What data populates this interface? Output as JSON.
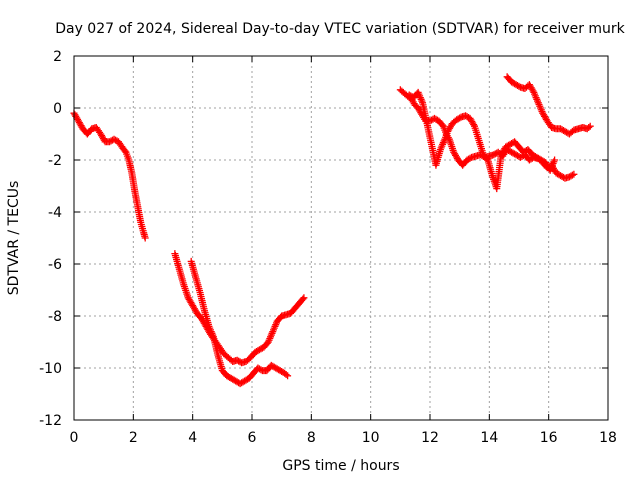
{
  "chart_data": {
    "type": "scatter",
    "title": "Day 027 of 2024, Sidereal Day-to-day VTEC variation (SDTVAR) for receiver murk",
    "xlabel": "GPS time / hours",
    "ylabel": "SDTVAR / TECUs",
    "xlim": [
      0,
      18
    ],
    "ylim": [
      -12,
      2
    ],
    "xticks": [
      0,
      2,
      4,
      6,
      8,
      10,
      12,
      14,
      16,
      18
    ],
    "yticks": [
      2,
      0,
      -2,
      -4,
      -6,
      -8,
      -10,
      -12
    ],
    "xtick_labels": [
      "0",
      "2",
      "4",
      "6",
      "8",
      "10",
      "12",
      "14",
      "16",
      "18"
    ],
    "ytick_labels": [
      "2",
      "0",
      "-2",
      "-4",
      "-6",
      "-8",
      "-10",
      "-12"
    ],
    "grid": true,
    "marker": "+",
    "color": "#ff0000",
    "series": [
      {
        "name": "segment-1",
        "x": [
          0.0,
          0.15,
          0.3,
          0.45,
          0.6,
          0.75,
          0.9,
          1.05,
          1.2,
          1.35,
          1.5,
          1.65,
          1.75,
          1.85,
          1.95,
          2.05,
          2.15,
          2.25,
          2.35,
          2.4
        ],
        "y": [
          -0.2,
          -0.5,
          -0.8,
          -1.0,
          -0.8,
          -0.75,
          -1.0,
          -1.3,
          -1.3,
          -1.2,
          -1.3,
          -1.55,
          -1.7,
          -2.0,
          -2.5,
          -3.2,
          -3.8,
          -4.4,
          -4.8,
          -5.0
        ]
      },
      {
        "name": "segment-2",
        "x": [
          3.4,
          3.55,
          3.7,
          3.85,
          4.0,
          4.15,
          4.3,
          4.45,
          4.6,
          4.75,
          4.9,
          5.05,
          5.2,
          5.35,
          5.5,
          5.65,
          5.8,
          5.95,
          6.1,
          6.25,
          6.4,
          6.55,
          6.7,
          6.85,
          7.0,
          7.15,
          7.3,
          7.45,
          7.6,
          7.75
        ],
        "y": [
          -5.6,
          -6.2,
          -6.8,
          -7.3,
          -7.6,
          -7.9,
          -8.1,
          -8.4,
          -8.7,
          -8.95,
          -9.2,
          -9.45,
          -9.6,
          -9.75,
          -9.7,
          -9.8,
          -9.75,
          -9.6,
          -9.4,
          -9.3,
          -9.2,
          -9.0,
          -8.6,
          -8.2,
          -8.0,
          -7.95,
          -7.9,
          -7.7,
          -7.5,
          -7.3
        ]
      },
      {
        "name": "segment-3",
        "x": [
          3.95,
          4.1,
          4.25,
          4.4,
          4.55,
          4.7,
          4.85,
          5.0,
          5.15,
          5.3,
          5.45,
          5.6,
          5.75,
          5.9,
          6.05,
          6.2,
          6.35,
          6.5,
          6.65,
          6.8,
          6.95,
          7.1,
          7.2
        ],
        "y": [
          -5.9,
          -6.5,
          -7.1,
          -7.8,
          -8.4,
          -8.8,
          -9.5,
          -10.1,
          -10.3,
          -10.4,
          -10.5,
          -10.6,
          -10.5,
          -10.4,
          -10.2,
          -10.0,
          -10.1,
          -10.1,
          -9.9,
          -10.0,
          -10.1,
          -10.2,
          -10.3
        ]
      },
      {
        "name": "segment-4",
        "x": [
          11.0,
          11.2,
          11.4,
          11.5,
          11.6,
          11.75,
          11.85,
          12.0,
          12.15,
          12.3,
          12.45,
          12.55,
          12.65,
          12.8,
          12.95,
          13.1,
          13.25,
          13.4,
          13.55,
          13.7,
          13.85,
          14.0,
          14.15,
          14.3,
          14.45,
          14.6,
          14.75,
          14.9,
          15.05,
          15.2,
          15.35,
          15.5,
          15.65,
          15.8,
          15.95,
          16.1,
          16.25,
          16.4,
          16.55,
          16.7,
          16.85
        ],
        "y": [
          0.7,
          0.5,
          0.3,
          0.1,
          0.0,
          -0.3,
          -0.5,
          -0.5,
          -0.4,
          -0.5,
          -0.7,
          -1.0,
          -1.2,
          -1.7,
          -2.0,
          -2.2,
          -2.0,
          -1.9,
          -1.85,
          -1.8,
          -1.9,
          -1.85,
          -1.8,
          -1.7,
          -1.85,
          -1.6,
          -1.7,
          -1.8,
          -1.9,
          -1.8,
          -2.0,
          -1.9,
          -1.95,
          -2.1,
          -2.3,
          -2.2,
          -2.5,
          -2.6,
          -2.7,
          -2.65,
          -2.55
        ]
      },
      {
        "name": "segment-5",
        "x": [
          11.3,
          11.45,
          11.6,
          11.75,
          12.2,
          12.35,
          12.5,
          12.6,
          12.75,
          12.9,
          13.05,
          13.2,
          13.35,
          13.5,
          13.8,
          13.95,
          14.1,
          14.25,
          14.4,
          14.55,
          14.7,
          14.85,
          15.0,
          15.15,
          15.3,
          15.45,
          15.6,
          15.75,
          15.9,
          16.05,
          16.2
        ],
        "y": [
          0.5,
          0.4,
          0.6,
          0.2,
          -2.2,
          -1.6,
          -1.2,
          -0.9,
          -0.6,
          -0.45,
          -0.35,
          -0.3,
          -0.4,
          -0.7,
          -1.8,
          -2.0,
          -2.6,
          -3.1,
          -1.8,
          -1.5,
          -1.4,
          -1.3,
          -1.5,
          -1.7,
          -1.6,
          -1.8,
          -1.9,
          -2.0,
          -2.1,
          -2.4,
          -2.0
        ]
      },
      {
        "name": "segment-6",
        "x": [
          14.6,
          14.75,
          14.9,
          15.05,
          15.2,
          15.35,
          15.5,
          15.65,
          15.8,
          15.95,
          16.1,
          16.25,
          16.4,
          16.55,
          16.7,
          16.85,
          17.0,
          17.15,
          17.3,
          17.4
        ],
        "y": [
          1.2,
          1.0,
          0.9,
          0.8,
          0.75,
          0.9,
          0.6,
          0.2,
          -0.2,
          -0.5,
          -0.75,
          -0.8,
          -0.8,
          -0.9,
          -1.0,
          -0.85,
          -0.8,
          -0.75,
          -0.8,
          -0.7
        ]
      }
    ]
  }
}
